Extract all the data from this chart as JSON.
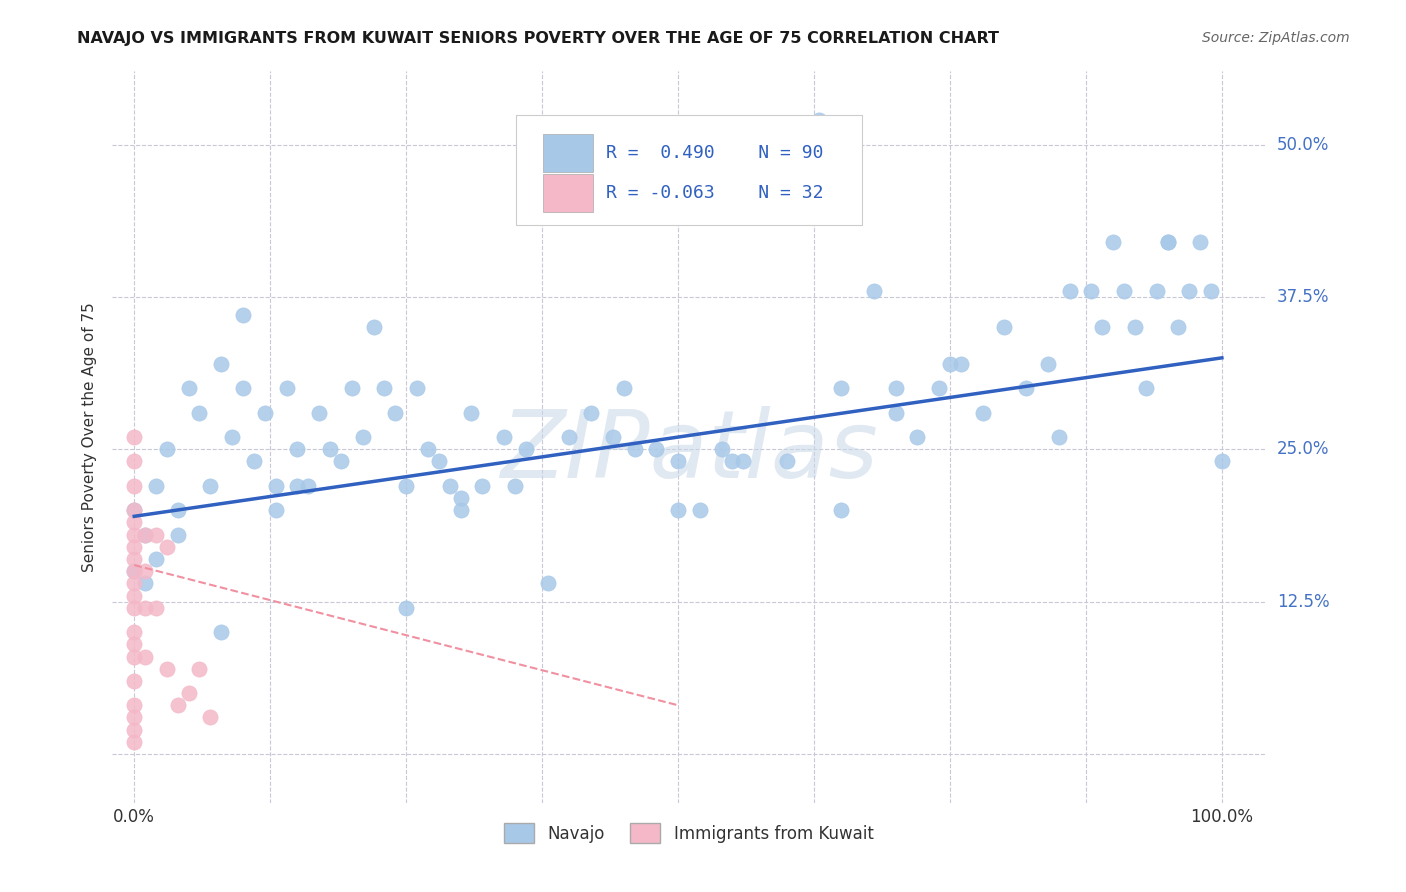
{
  "title": "NAVAJO VS IMMIGRANTS FROM KUWAIT SENIORS POVERTY OVER THE AGE OF 75 CORRELATION CHART",
  "source": "Source: ZipAtlas.com",
  "ylabel": "Seniors Poverty Over the Age of 75",
  "navajo_color": "#a8c8e8",
  "kuwait_color": "#f4b8c8",
  "trendline_navajo_color": "#3060c0",
  "trendline_kuwait_color": "#f090a0",
  "background_color": "#ffffff",
  "grid_color": "#c8c8d8",
  "xlim": [
    -0.02,
    1.04
  ],
  "ylim": [
    -0.04,
    0.56
  ],
  "xticks": [
    0.0,
    0.125,
    0.25,
    0.375,
    0.5,
    0.625,
    0.75,
    0.875,
    1.0
  ],
  "yticks": [
    0.0,
    0.125,
    0.25,
    0.375,
    0.5
  ],
  "right_ytick_labels": [
    "",
    "12.5%",
    "25.0%",
    "37.5%",
    "50.0%"
  ],
  "navajo_x": [
    0.0,
    0.0,
    0.01,
    0.01,
    0.02,
    0.02,
    0.03,
    0.04,
    0.05,
    0.06,
    0.07,
    0.08,
    0.09,
    0.1,
    0.11,
    0.12,
    0.13,
    0.14,
    0.15,
    0.16,
    0.17,
    0.18,
    0.19,
    0.2,
    0.21,
    0.22,
    0.23,
    0.24,
    0.25,
    0.26,
    0.27,
    0.28,
    0.29,
    0.3,
    0.31,
    0.32,
    0.34,
    0.36,
    0.38,
    0.4,
    0.42,
    0.44,
    0.46,
    0.48,
    0.5,
    0.52,
    0.54,
    0.56,
    0.6,
    0.63,
    0.65,
    0.68,
    0.7,
    0.72,
    0.74,
    0.76,
    0.78,
    0.8,
    0.82,
    0.84,
    0.86,
    0.88,
    0.89,
    0.9,
    0.91,
    0.92,
    0.93,
    0.94,
    0.95,
    0.96,
    0.97,
    0.98,
    0.99,
    1.0,
    0.3,
    0.1,
    0.5,
    0.7,
    0.08,
    0.15,
    0.25,
    0.35,
    0.45,
    0.55,
    0.65,
    0.75,
    0.85,
    0.95,
    0.04,
    0.13
  ],
  "navajo_y": [
    0.2,
    0.15,
    0.18,
    0.14,
    0.22,
    0.16,
    0.25,
    0.2,
    0.3,
    0.28,
    0.22,
    0.32,
    0.26,
    0.3,
    0.24,
    0.28,
    0.22,
    0.3,
    0.25,
    0.22,
    0.28,
    0.25,
    0.24,
    0.3,
    0.26,
    0.35,
    0.3,
    0.28,
    0.12,
    0.3,
    0.25,
    0.24,
    0.22,
    0.2,
    0.28,
    0.22,
    0.26,
    0.25,
    0.14,
    0.26,
    0.28,
    0.26,
    0.25,
    0.25,
    0.24,
    0.2,
    0.25,
    0.24,
    0.24,
    0.52,
    0.2,
    0.38,
    0.3,
    0.26,
    0.3,
    0.32,
    0.28,
    0.35,
    0.3,
    0.32,
    0.38,
    0.38,
    0.35,
    0.42,
    0.38,
    0.35,
    0.3,
    0.38,
    0.42,
    0.35,
    0.38,
    0.42,
    0.38,
    0.24,
    0.21,
    0.36,
    0.2,
    0.28,
    0.1,
    0.22,
    0.22,
    0.22,
    0.3,
    0.24,
    0.3,
    0.32,
    0.26,
    0.42,
    0.18,
    0.2
  ],
  "kuwait_x": [
    0.0,
    0.0,
    0.0,
    0.0,
    0.0,
    0.0,
    0.0,
    0.0,
    0.0,
    0.0,
    0.0,
    0.0,
    0.0,
    0.0,
    0.0,
    0.0,
    0.0,
    0.0,
    0.0,
    0.0,
    0.01,
    0.01,
    0.01,
    0.01,
    0.02,
    0.02,
    0.03,
    0.03,
    0.04,
    0.05,
    0.06,
    0.07
  ],
  "kuwait_y": [
    0.2,
    0.19,
    0.18,
    0.17,
    0.16,
    0.15,
    0.14,
    0.13,
    0.12,
    0.09,
    0.08,
    0.06,
    0.04,
    0.03,
    0.02,
    0.01,
    0.22,
    0.24,
    0.26,
    0.1,
    0.18,
    0.15,
    0.12,
    0.08,
    0.18,
    0.12,
    0.17,
    0.07,
    0.04,
    0.05,
    0.07,
    0.03
  ],
  "navajo_trend_x0": 0.0,
  "navajo_trend_y0": 0.195,
  "navajo_trend_x1": 1.0,
  "navajo_trend_y1": 0.325,
  "kuwait_trend_x0": 0.0,
  "kuwait_trend_y0": 0.155,
  "kuwait_trend_x1": 0.5,
  "kuwait_trend_y1": 0.04,
  "watermark_text": "ZIPatlas",
  "legend_r1": "R =  0.490",
  "legend_n1": "N = 90",
  "legend_r2": "R = -0.063",
  "legend_n2": "N = 32"
}
